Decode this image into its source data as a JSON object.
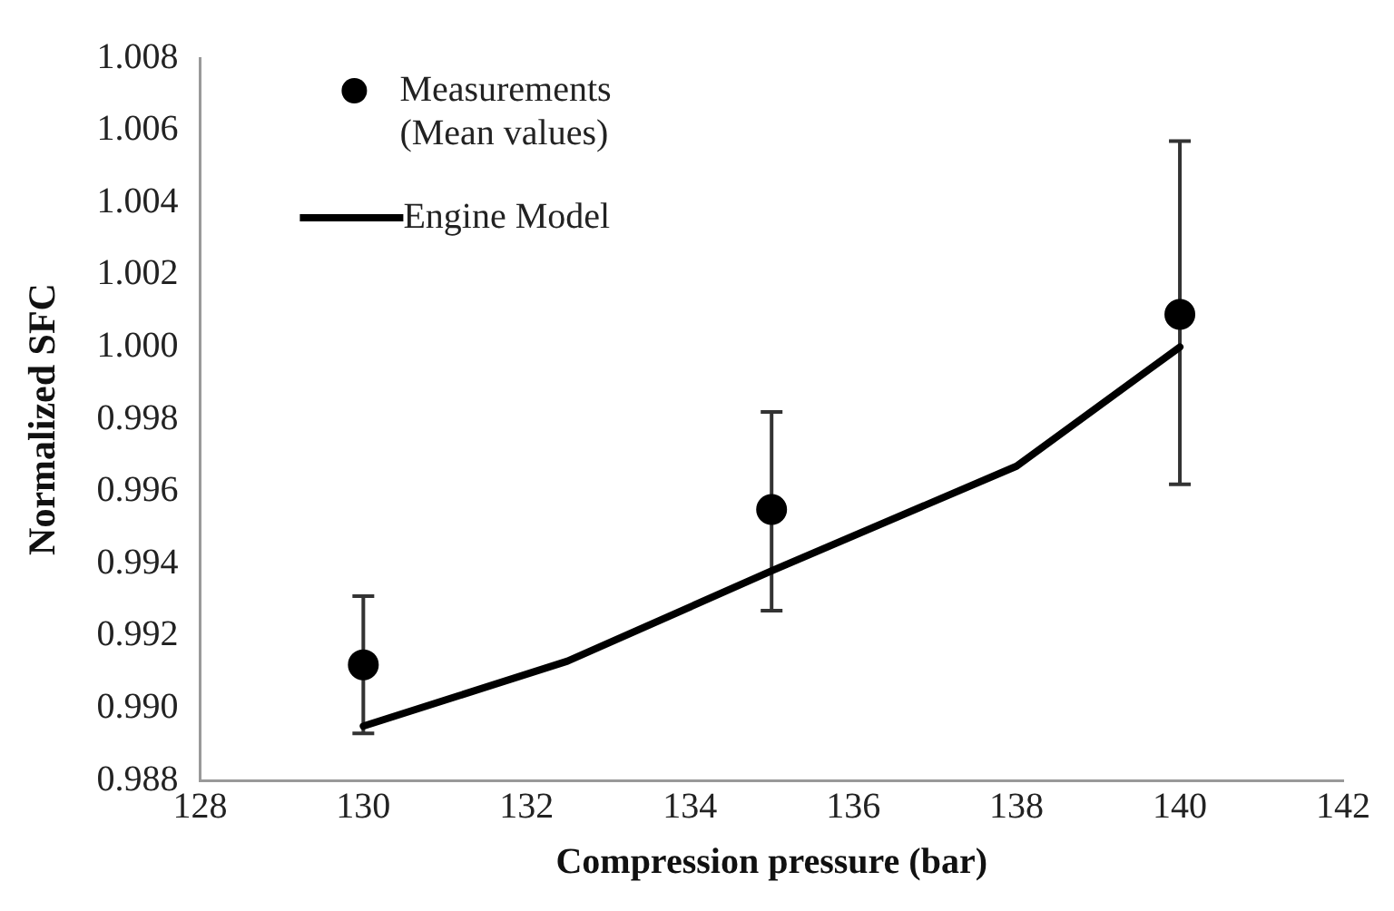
{
  "chart_data": {
    "type": "scatter",
    "xlabel": "Compression pressure (bar)",
    "ylabel": "Normalized SFC",
    "xlim": [
      128,
      142
    ],
    "xticks": [
      128,
      130,
      132,
      134,
      136,
      138,
      140,
      142
    ],
    "ylim": [
      0.988,
      1.008
    ],
    "yticks": [
      {
        "value": 0.988,
        "label": "0.988"
      },
      {
        "value": 0.99,
        "label": "0.990"
      },
      {
        "value": 0.992,
        "label": "0.992"
      },
      {
        "value": 0.994,
        "label": "0.994"
      },
      {
        "value": 0.996,
        "label": "0.996"
      },
      {
        "value": 0.998,
        "label": "0.998"
      },
      {
        "value": 1,
        "label": "1.000"
      },
      {
        "value": 1.002,
        "label": "1.002"
      },
      {
        "value": 1.004,
        "label": "1.004"
      },
      {
        "value": 1.006,
        "label": "1.006"
      },
      {
        "value": 1.008,
        "label": "1.008"
      }
    ],
    "grid": false,
    "legend": "top left",
    "series": [
      {
        "name": "Measurements\n(Mean values)",
        "type": "scatter",
        "marker": "circle",
        "color": "#000000",
        "x": [
          130,
          135,
          140
        ],
        "values": [
          0.9912,
          0.9955,
          1.0009
        ],
        "errors": [
          [
            0.9893,
            0.9931
          ],
          [
            0.9927,
            0.9982
          ],
          [
            0.9962,
            1.0057
          ]
        ]
      },
      {
        "name": "Engine Model",
        "type": "line",
        "marker": "none",
        "color": "#000000",
        "x": [
          130,
          132.5,
          135,
          138,
          140
        ],
        "values": [
          0.9895,
          0.9913,
          0.9938,
          0.9967,
          1.0
        ]
      }
    ]
  }
}
